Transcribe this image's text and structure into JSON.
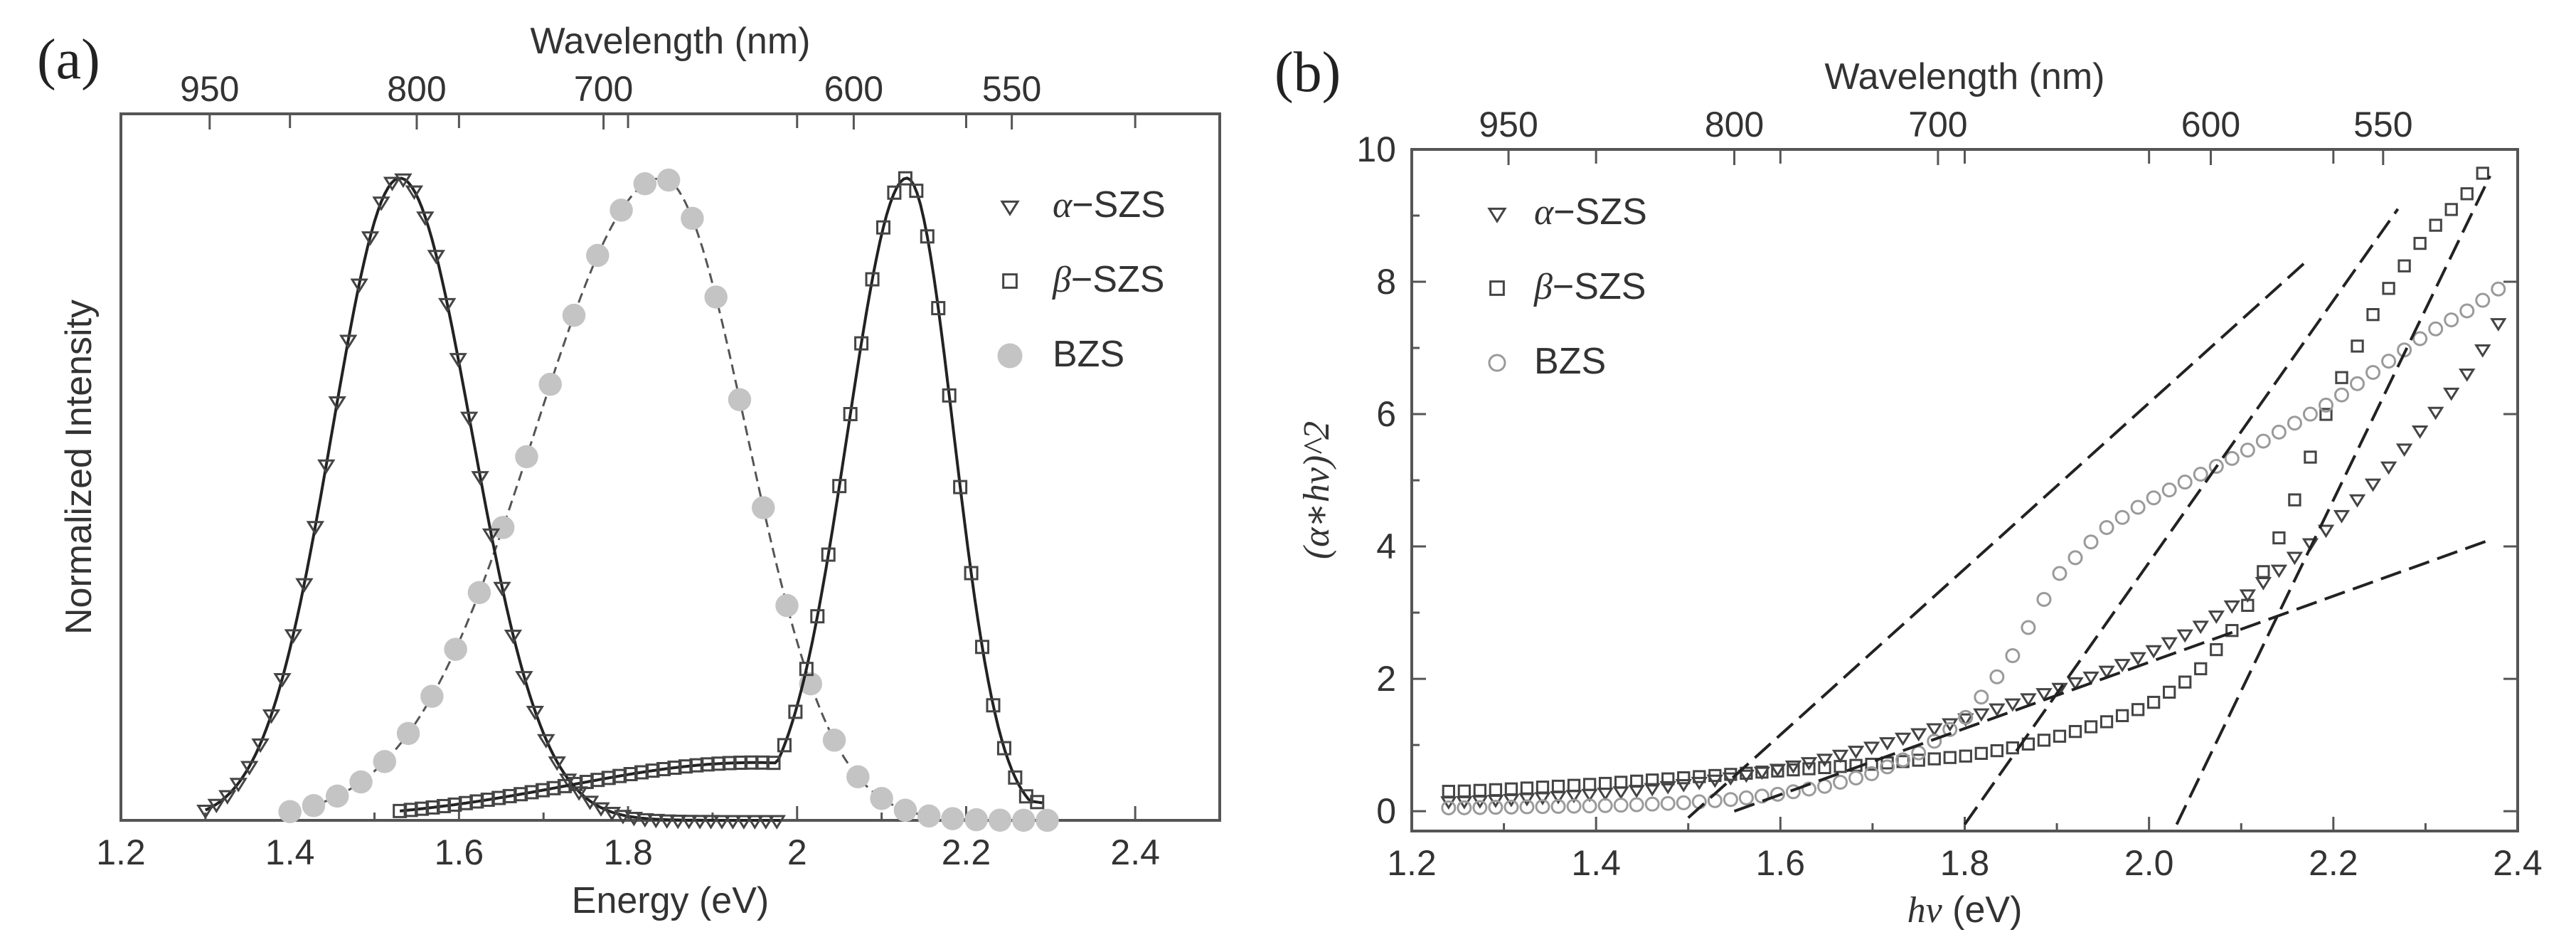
{
  "chart_data": [
    {
      "type": "scatter",
      "panel_label": "(a)",
      "xlabel": "Energy (eV)",
      "ylabel": "Normalized Intensity",
      "top_axis_label": "Wavelength (nm)",
      "xlim": [
        1.2,
        2.5
      ],
      "ylim": [
        0,
        1.1
      ],
      "x_ticks": [
        1.2,
        1.4,
        1.6,
        1.8,
        2.0,
        2.2,
        2.4
      ],
      "x_tick_labels": [
        "1.2",
        "1.4",
        "1.6",
        "1.8",
        "2",
        "2.2",
        "2.4"
      ],
      "top_ticks": [
        {
          "label": "950",
          "energy": 1.305
        },
        {
          "label": "800",
          "energy": 1.55
        },
        {
          "label": "700",
          "energy": 1.771
        },
        {
          "label": "600",
          "energy": 2.067
        },
        {
          "label": "550",
          "energy": 2.254
        }
      ],
      "series": [
        {
          "name": "α−SZS",
          "label_math": "α",
          "label_rest": "−SZS",
          "marker": "triangle-down",
          "fit": "gaussian",
          "peak": 1.53,
          "sigma_left": 0.08,
          "sigma_right": 0.085,
          "amplitude": 1.0,
          "x_range": [
            1.3,
            1.98
          ],
          "marker_step": 0.013
        },
        {
          "name": "β−SZS",
          "label_math": "β",
          "label_rest": "−SZS",
          "marker": "square",
          "fit": "gaussian+shoulder",
          "peak": 2.13,
          "sigma_left": 0.07,
          "sigma_right": 0.055,
          "amplitude": 1.0,
          "shoulder_center": 1.95,
          "shoulder_sigma": 0.22,
          "shoulder_amplitude": 0.09,
          "x_range": [
            1.53,
            2.29
          ],
          "marker_step": 0.013
        },
        {
          "name": "BZS",
          "label_math": "",
          "label_rest": "BZS",
          "marker": "filled-circle",
          "fit": "gaussian",
          "peak": 1.84,
          "sigma_left": 0.15,
          "sigma_right": 0.1,
          "amplitude": 1.0,
          "x_range": [
            1.4,
            2.3
          ],
          "marker_step": 0.028
        }
      ],
      "legend_position": "top-right"
    },
    {
      "type": "scatter",
      "panel_label": "(b)",
      "xlabel_italic": "hν",
      "xlabel_rest": " (eV)",
      "ylabel": "(α∗hν)^2",
      "top_axis_label": "Wavelength (nm)",
      "xlim": [
        1.2,
        2.4
      ],
      "ylim": [
        -0.3,
        10
      ],
      "x_ticks": [
        1.2,
        1.4,
        1.6,
        1.8,
        2.0,
        2.2,
        2.4
      ],
      "x_tick_labels": [
        "1.2",
        "1.4",
        "1.6",
        "1.8",
        "2.0",
        "2.2",
        "2.4"
      ],
      "y_ticks": [
        0,
        2,
        4,
        6,
        8,
        10
      ],
      "y_tick_labels": [
        "0",
        "2",
        "4",
        "6",
        "8",
        "10"
      ],
      "top_ticks": [
        {
          "label": "950",
          "energy": 1.305
        },
        {
          "label": "800",
          "energy": 1.55
        },
        {
          "label": "700",
          "energy": 1.771
        },
        {
          "label": "600",
          "energy": 2.067
        },
        {
          "label": "550",
          "energy": 2.254
        }
      ],
      "series": [
        {
          "name": "α−SZS",
          "label_math": "α",
          "label_rest": "−SZS",
          "marker": "triangle-down",
          "points": [
            [
              1.25,
              0.15
            ],
            [
              1.3,
              0.18
            ],
            [
              1.35,
              0.22
            ],
            [
              1.4,
              0.27
            ],
            [
              1.45,
              0.33
            ],
            [
              1.5,
              0.42
            ],
            [
              1.55,
              0.52
            ],
            [
              1.6,
              0.65
            ],
            [
              1.65,
              0.8
            ],
            [
              1.7,
              0.98
            ],
            [
              1.75,
              1.18
            ],
            [
              1.8,
              1.4
            ],
            [
              1.85,
              1.62
            ],
            [
              1.9,
              1.85
            ],
            [
              1.95,
              2.1
            ],
            [
              2.0,
              2.4
            ],
            [
              2.05,
              2.75
            ],
            [
              2.1,
              3.2
            ],
            [
              2.15,
              3.75
            ],
            [
              2.2,
              4.35
            ],
            [
              2.25,
              5.05
            ],
            [
              2.3,
              5.85
            ],
            [
              2.35,
              6.7
            ],
            [
              2.38,
              7.4
            ]
          ],
          "x_range": [
            1.24,
            2.38
          ],
          "marker_step": 0.017
        },
        {
          "name": "β−SZS",
          "label_math": "β",
          "label_rest": "−SZS",
          "marker": "square",
          "points": [
            [
              1.25,
              0.3
            ],
            [
              1.3,
              0.33
            ],
            [
              1.35,
              0.37
            ],
            [
              1.4,
              0.41
            ],
            [
              1.45,
              0.46
            ],
            [
              1.5,
              0.51
            ],
            [
              1.55,
              0.56
            ],
            [
              1.6,
              0.61
            ],
            [
              1.65,
              0.66
            ],
            [
              1.7,
              0.71
            ],
            [
              1.75,
              0.77
            ],
            [
              1.8,
              0.83
            ],
            [
              1.85,
              0.95
            ],
            [
              1.9,
              1.12
            ],
            [
              1.95,
              1.33
            ],
            [
              2.0,
              1.6
            ],
            [
              2.05,
              2.05
            ],
            [
              2.1,
              2.9
            ],
            [
              2.15,
              4.4
            ],
            [
              2.2,
              6.3
            ],
            [
              2.25,
              7.7
            ],
            [
              2.3,
              8.7
            ],
            [
              2.35,
              9.4
            ],
            [
              2.37,
              9.8
            ]
          ],
          "x_range": [
            1.24,
            2.37
          ],
          "marker_step": 0.017
        },
        {
          "name": "BZS",
          "label_math": "",
          "label_rest": "BZS",
          "marker": "open-circle",
          "points": [
            [
              1.25,
              0.05
            ],
            [
              1.3,
              0.06
            ],
            [
              1.35,
              0.07
            ],
            [
              1.4,
              0.08
            ],
            [
              1.45,
              0.1
            ],
            [
              1.5,
              0.13
            ],
            [
              1.55,
              0.18
            ],
            [
              1.6,
              0.26
            ],
            [
              1.65,
              0.38
            ],
            [
              1.7,
              0.57
            ],
            [
              1.75,
              0.88
            ],
            [
              1.8,
              1.4
            ],
            [
              1.85,
              2.3
            ],
            [
              1.9,
              3.55
            ],
            [
              1.95,
              4.25
            ],
            [
              2.0,
              4.7
            ],
            [
              2.05,
              5.05
            ],
            [
              2.1,
              5.4
            ],
            [
              2.15,
              5.8
            ],
            [
              2.2,
              6.2
            ],
            [
              2.25,
              6.7
            ],
            [
              2.3,
              7.2
            ],
            [
              2.35,
              7.6
            ],
            [
              2.38,
              7.9
            ]
          ],
          "x_range": [
            1.24,
            2.38
          ],
          "marker_step": 0.017
        }
      ],
      "fit_lines": [
        {
          "from": [
            1.5,
            -0.1
          ],
          "to": [
            2.17,
            8.3
          ]
        },
        {
          "from": [
            1.8,
            -0.2
          ],
          "to": [
            2.27,
            9.1
          ]
        },
        {
          "from": [
            1.55,
            0.0
          ],
          "to": [
            2.37,
            4.1
          ]
        },
        {
          "from": [
            2.03,
            -0.2
          ],
          "to": [
            2.37,
            9.6
          ]
        }
      ],
      "legend_position": "top-left"
    }
  ]
}
